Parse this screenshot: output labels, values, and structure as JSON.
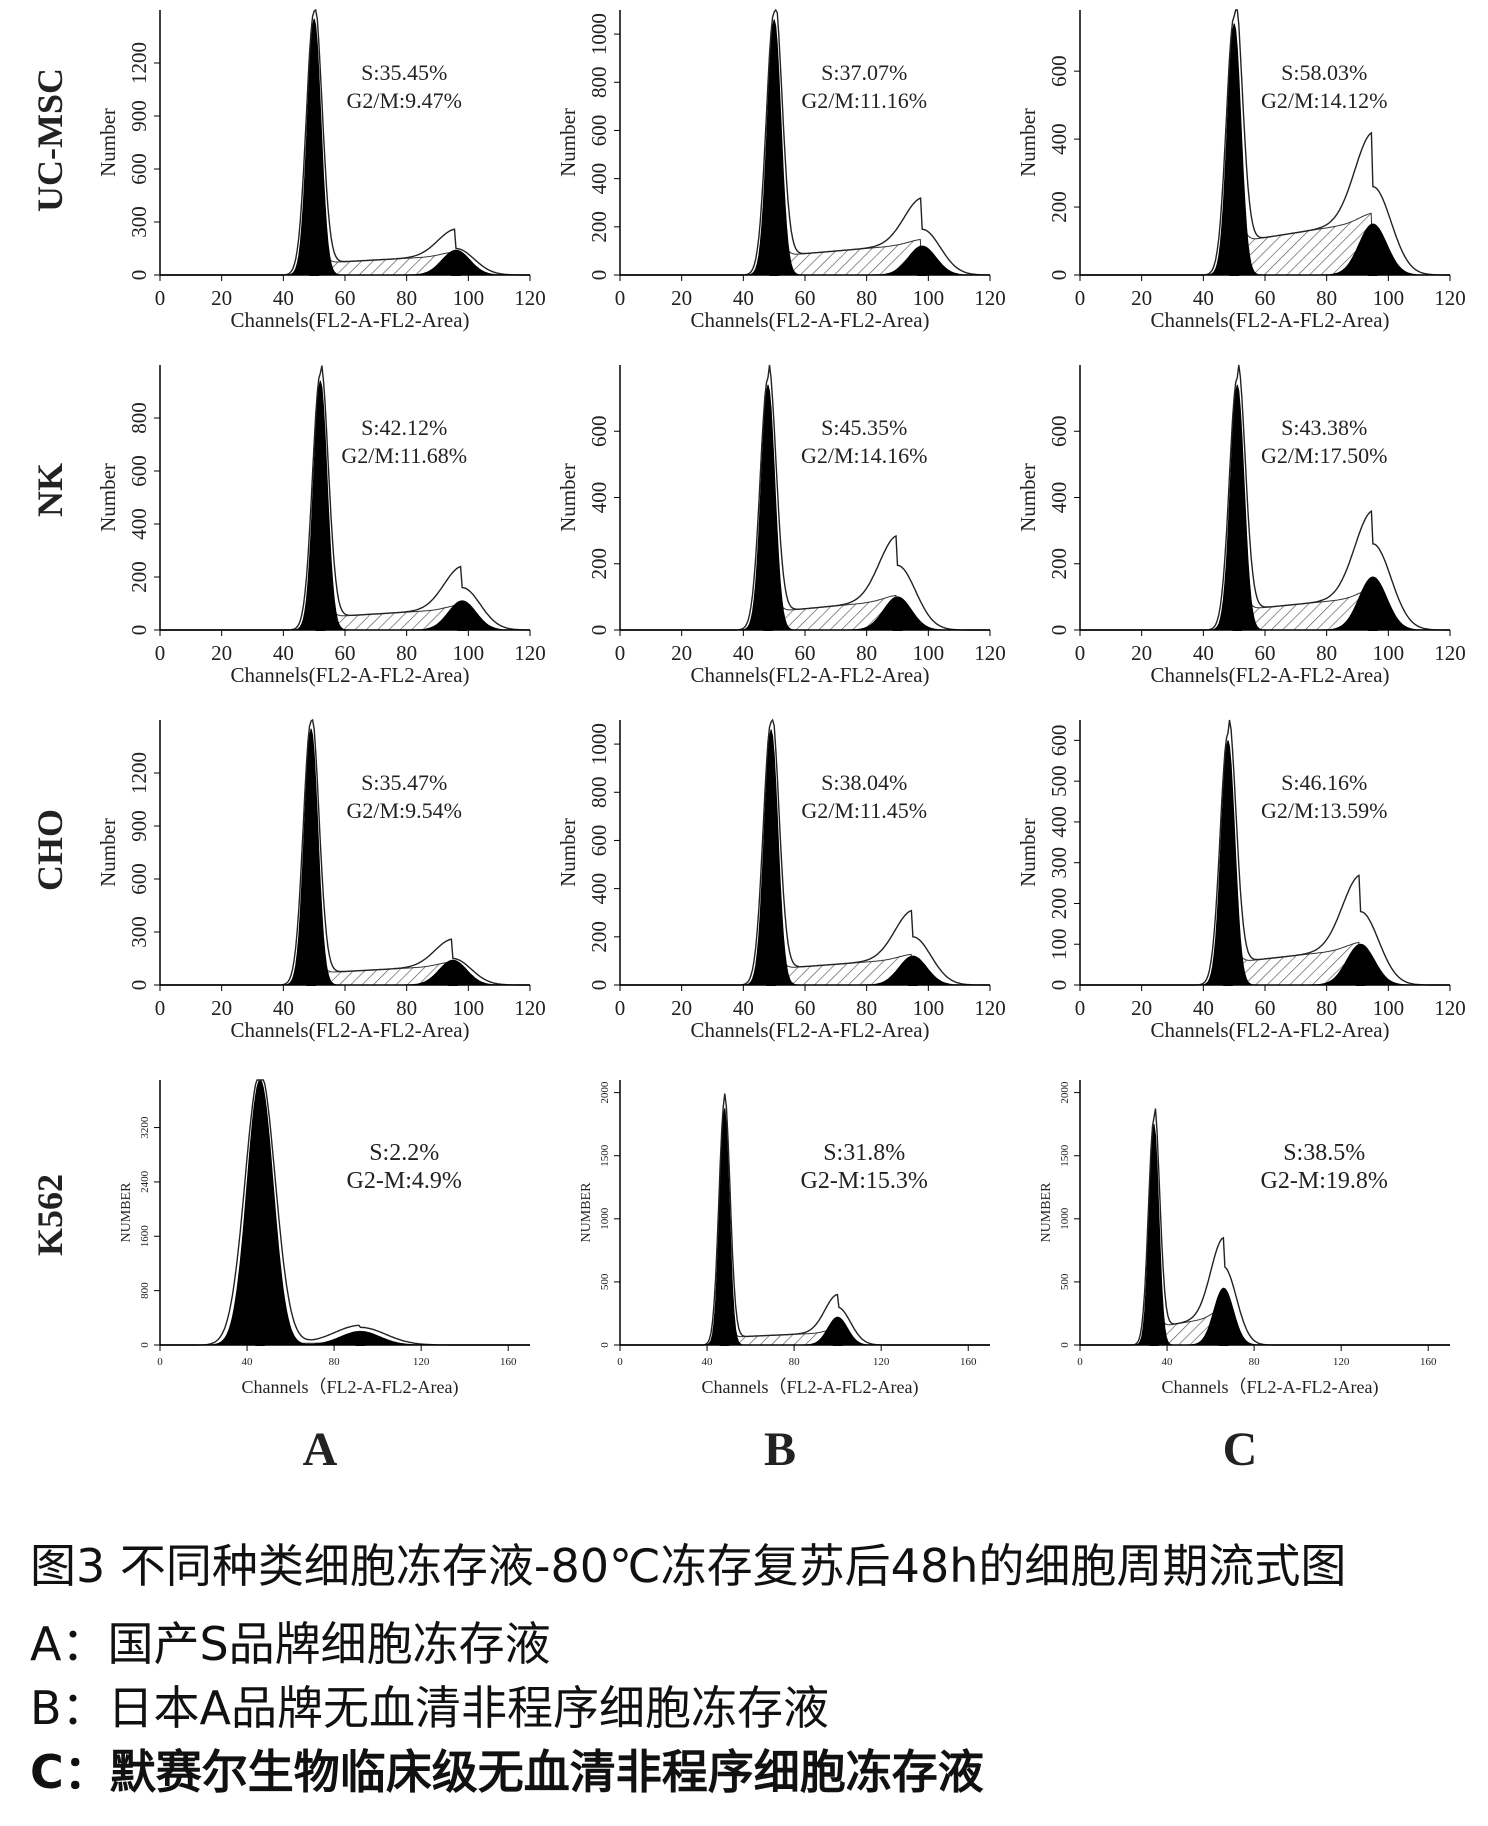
{
  "figure": {
    "rows": [
      "UC-MSC",
      "NK",
      "CHO",
      "K562"
    ],
    "columns": [
      "A",
      "B",
      "C"
    ]
  },
  "chart_data": [
    {
      "type": "histogram",
      "row": "UC-MSC",
      "column": "A",
      "xlabel": "Channels(FL2-A-FL2-Area)",
      "ylabel": "Number",
      "xlim": [
        0,
        120
      ],
      "xticks": [
        0,
        20,
        40,
        60,
        80,
        100,
        120
      ],
      "ylim": [
        0,
        1500
      ],
      "yticks": [
        0,
        300,
        600,
        900,
        1200
      ],
      "stats": [
        "S:35.45%",
        "G2/M:9.47%"
      ],
      "g1_peak": {
        "x": 50,
        "y": 1450
      },
      "g2_peak": {
        "x": 96,
        "y": 140
      },
      "s_level": 110,
      "envelope_g2": 150
    },
    {
      "type": "histogram",
      "row": "UC-MSC",
      "column": "B",
      "xlabel": "Channels(FL2-A-FL2-Area)",
      "ylabel": "Number",
      "xlim": [
        0,
        120
      ],
      "xticks": [
        0,
        20,
        40,
        60,
        80,
        100,
        120
      ],
      "ylim": [
        0,
        1100
      ],
      "yticks": [
        0,
        200,
        400,
        600,
        800,
        1000
      ],
      "stats": [
        "S:37.07%",
        "G2/M:11.16%"
      ],
      "g1_peak": {
        "x": 50,
        "y": 1060
      },
      "g2_peak": {
        "x": 98,
        "y": 120
      },
      "s_level": 130,
      "envelope_g2": 190
    },
    {
      "type": "histogram",
      "row": "UC-MSC",
      "column": "C",
      "xlabel": "Channels(FL2-A-FL2-Area)",
      "ylabel": "Number",
      "xlim": [
        0,
        120
      ],
      "xticks": [
        0,
        20,
        40,
        60,
        80,
        100,
        120
      ],
      "ylim": [
        0,
        780
      ],
      "yticks": [
        0,
        200,
        400,
        600
      ],
      "stats": [
        "S:58.03%",
        "G2/M:14.12%"
      ],
      "g1_peak": {
        "x": 50,
        "y": 740
      },
      "g2_peak": {
        "x": 95,
        "y": 150
      },
      "s_level": 160,
      "envelope_g2": 260
    },
    {
      "type": "histogram",
      "row": "NK",
      "column": "A",
      "xlabel": "Channels(FL2-A-FL2-Area)",
      "ylabel": "Number",
      "xlim": [
        0,
        120
      ],
      "xticks": [
        0,
        20,
        40,
        60,
        80,
        100,
        120
      ],
      "ylim": [
        0,
        1000
      ],
      "yticks": [
        0,
        200,
        400,
        600,
        800
      ],
      "stats": [
        "S:42.12%",
        "G2/M:11.68%"
      ],
      "g1_peak": {
        "x": 52,
        "y": 940
      },
      "g2_peak": {
        "x": 98,
        "y": 110
      },
      "s_level": 80,
      "envelope_g2": 160
    },
    {
      "type": "histogram",
      "row": "NK",
      "column": "B",
      "xlabel": "Channels(FL2-A-FL2-Area)",
      "ylabel": "Number",
      "xlim": [
        0,
        120
      ],
      "xticks": [
        0,
        20,
        40,
        60,
        80,
        100,
        120
      ],
      "ylim": [
        0,
        800
      ],
      "yticks": [
        0,
        200,
        400,
        600
      ],
      "stats": [
        "S:45.35%",
        "G2/M:14.16%"
      ],
      "g1_peak": {
        "x": 48,
        "y": 740
      },
      "g2_peak": {
        "x": 90,
        "y": 100
      },
      "s_level": 90,
      "envelope_g2": 195
    },
    {
      "type": "histogram",
      "row": "NK",
      "column": "C",
      "xlabel": "Channels(FL2-A-FL2-Area)",
      "ylabel": "Number",
      "xlim": [
        0,
        120
      ],
      "xticks": [
        0,
        20,
        40,
        60,
        80,
        100,
        120
      ],
      "ylim": [
        0,
        800
      ],
      "yticks": [
        0,
        200,
        400,
        600
      ],
      "stats": [
        "S:43.38%",
        "G2/M:17.50%"
      ],
      "g1_peak": {
        "x": 51,
        "y": 740
      },
      "g2_peak": {
        "x": 95,
        "y": 160
      },
      "s_level": 100,
      "envelope_g2": 260
    },
    {
      "type": "histogram",
      "row": "CHO",
      "column": "A",
      "xlabel": "Channels(FL2-A-FL2-Area)",
      "ylabel": "Number",
      "xlim": [
        0,
        120
      ],
      "xticks": [
        0,
        20,
        40,
        60,
        80,
        100,
        120
      ],
      "ylim": [
        0,
        1500
      ],
      "yticks": [
        0,
        300,
        600,
        900,
        1200
      ],
      "stats": [
        "S:35.47%",
        "G2/M:9.54%"
      ],
      "g1_peak": {
        "x": 49,
        "y": 1450
      },
      "g2_peak": {
        "x": 95,
        "y": 140
      },
      "s_level": 110,
      "envelope_g2": 150
    },
    {
      "type": "histogram",
      "row": "CHO",
      "column": "B",
      "xlabel": "Channels(FL2-A-FL2-Area)",
      "ylabel": "Number",
      "xlim": [
        0,
        120
      ],
      "xticks": [
        0,
        20,
        40,
        60,
        80,
        100,
        120
      ],
      "ylim": [
        0,
        1100
      ],
      "yticks": [
        0,
        200,
        400,
        600,
        800,
        1000
      ],
      "stats": [
        "S:38.04%",
        "G2/M:11.45%"
      ],
      "g1_peak": {
        "x": 49,
        "y": 1060
      },
      "g2_peak": {
        "x": 95,
        "y": 120
      },
      "s_level": 110,
      "envelope_g2": 200
    },
    {
      "type": "histogram",
      "row": "CHO",
      "column": "C",
      "xlabel": "Channels(FL2-A-FL2-Area)",
      "ylabel": "Number",
      "xlim": [
        0,
        120
      ],
      "xticks": [
        0,
        20,
        40,
        60,
        80,
        100,
        120
      ],
      "ylim": [
        0,
        650
      ],
      "yticks": [
        0,
        100,
        200,
        300,
        400,
        500,
        600
      ],
      "stats": [
        "S:46.16%",
        "G2/M:13.59%"
      ],
      "g1_peak": {
        "x": 48,
        "y": 600
      },
      "g2_peak": {
        "x": 91,
        "y": 100
      },
      "s_level": 90,
      "envelope_g2": 180
    },
    {
      "type": "histogram",
      "row": "K562",
      "column": "A",
      "xlabel": "Channels（FL2-A-FL2-Area)",
      "ylabel": "NUMBER",
      "xlim": [
        0,
        170
      ],
      "xticks": [
        0,
        40,
        80,
        120,
        160
      ],
      "ylim": [
        0,
        3900
      ],
      "yticks": [
        0,
        800,
        1600,
        2400,
        3200
      ],
      "stats": [
        "S:2.2%",
        "G2-M:4.9%"
      ],
      "g1_peak": {
        "x": 46,
        "y": 3900
      },
      "g2_peak": {
        "x": 92,
        "y": 200
      },
      "s_level": 30,
      "envelope_g2": 260
    },
    {
      "type": "histogram",
      "row": "K562",
      "column": "B",
      "xlabel": "Channels（FL2-A-FL2-Area)",
      "ylabel": "NUMBER",
      "xlim": [
        0,
        170
      ],
      "xticks": [
        0,
        40,
        80,
        120,
        160
      ],
      "ylim": [
        0,
        2100
      ],
      "yticks": [
        0,
        500,
        1000,
        1500,
        2000
      ],
      "stats": [
        "S:31.8%",
        "G2-M:15.3%"
      ],
      "g1_peak": {
        "x": 48,
        "y": 1880
      },
      "g2_peak": {
        "x": 100,
        "y": 220
      },
      "s_level": 100,
      "envelope_g2": 300
    },
    {
      "type": "histogram",
      "row": "K562",
      "column": "C",
      "xlabel": "Channels（FL2-A-FL2-Area)",
      "ylabel": "NUMBER",
      "xlim": [
        0,
        170
      ],
      "xticks": [
        0,
        40,
        80,
        120,
        160
      ],
      "ylim": [
        0,
        2100
      ],
      "yticks": [
        0,
        500,
        1000,
        1500,
        2000
      ],
      "stats": [
        "S:38.5%",
        "G2-M:19.8%"
      ],
      "g1_peak": {
        "x": 34,
        "y": 1750
      },
      "g2_peak": {
        "x": 66,
        "y": 450
      },
      "s_level": 230,
      "envelope_g2": 620
    }
  ],
  "caption": {
    "title": "图3 不同种类细胞冻存液-80℃冻存复苏后48h的细胞周期流式图",
    "line_a": "A：国产S品牌细胞冻存液",
    "line_b": "B：日本A品牌无血清非程序细胞冻存液",
    "line_c": "C：默赛尔生物临床级无血清非程序细胞冻存液"
  }
}
